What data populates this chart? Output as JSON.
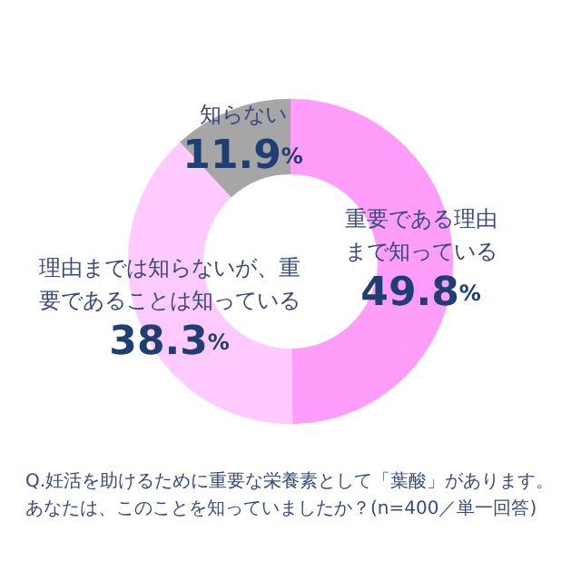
{
  "chart_data": {
    "type": "donut",
    "categories": [
      "重要である理由まで知っている",
      "理由までは知らないが、重要であることは知っている",
      "知らない"
    ],
    "values": [
      49.8,
      38.3,
      11.9
    ],
    "colors": [
      "#ff9dfa",
      "#ffcafd",
      "#a6a6a6"
    ],
    "data_labels": true,
    "value_labels": [
      "49.8%",
      "38.3%",
      "11.9%"
    ],
    "legend": false,
    "annotations": [
      "Q.妊活を助けるために重要な栄養素として「葉酸」があります。あなたは、このことを知っていましたか？(n=400／単一回答)"
    ]
  }
}
